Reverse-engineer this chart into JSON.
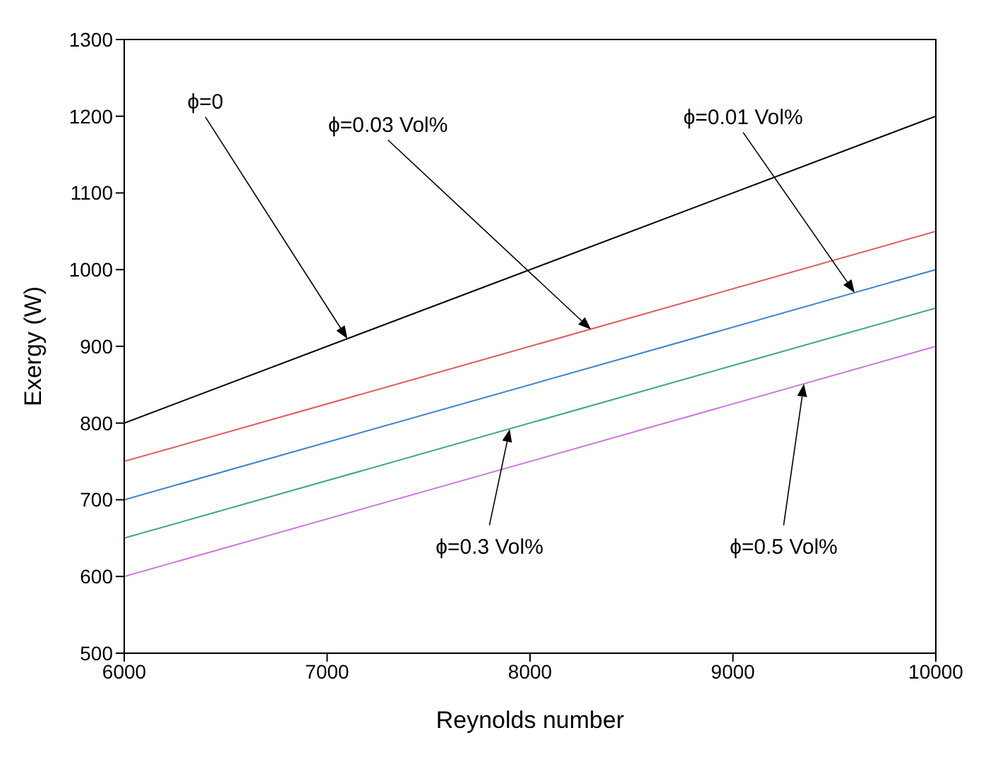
{
  "chart_data": {
    "type": "line",
    "xlabel": "Reynolds number",
    "ylabel": "Exergy (W)",
    "x": [
      6000,
      10000
    ],
    "series": [
      {
        "color": "#000000",
        "values": [
          800,
          1200
        ]
      },
      {
        "color": "#e05a5a",
        "values": [
          750,
          1050
        ]
      },
      {
        "color": "#3f7fc8",
        "values": [
          700,
          1000
        ]
      },
      {
        "color": "#3aa878",
        "values": [
          650,
          950
        ]
      },
      {
        "color": "#cc77dd",
        "values": [
          600,
          900
        ]
      }
    ],
    "xlim": [
      6000,
      10000
    ],
    "xticks": [
      6000,
      7000,
      8000,
      9000,
      10000
    ],
    "ylim": [
      500,
      1300
    ],
    "yticks": [
      500,
      600,
      700,
      800,
      900,
      1000,
      1100,
      1200,
      1300
    ],
    "grid": false,
    "legend": false,
    "marker": "none",
    "line_style": "solid",
    "annotations": [
      {
        "text": "ϕ=0",
        "x": 7100,
        "y": 910
      },
      {
        "text": "ϕ=0.03 Vol%",
        "x": 8300,
        "y": 922
      },
      {
        "text": "ϕ=0.01 Vol%",
        "x": 9600,
        "y": 970
      },
      {
        "text": "ϕ=0.3 Vol%",
        "x": 7900,
        "y": 792
      },
      {
        "text": "ϕ=0.5 Vol%",
        "x": 9350,
        "y": 851
      }
    ]
  }
}
